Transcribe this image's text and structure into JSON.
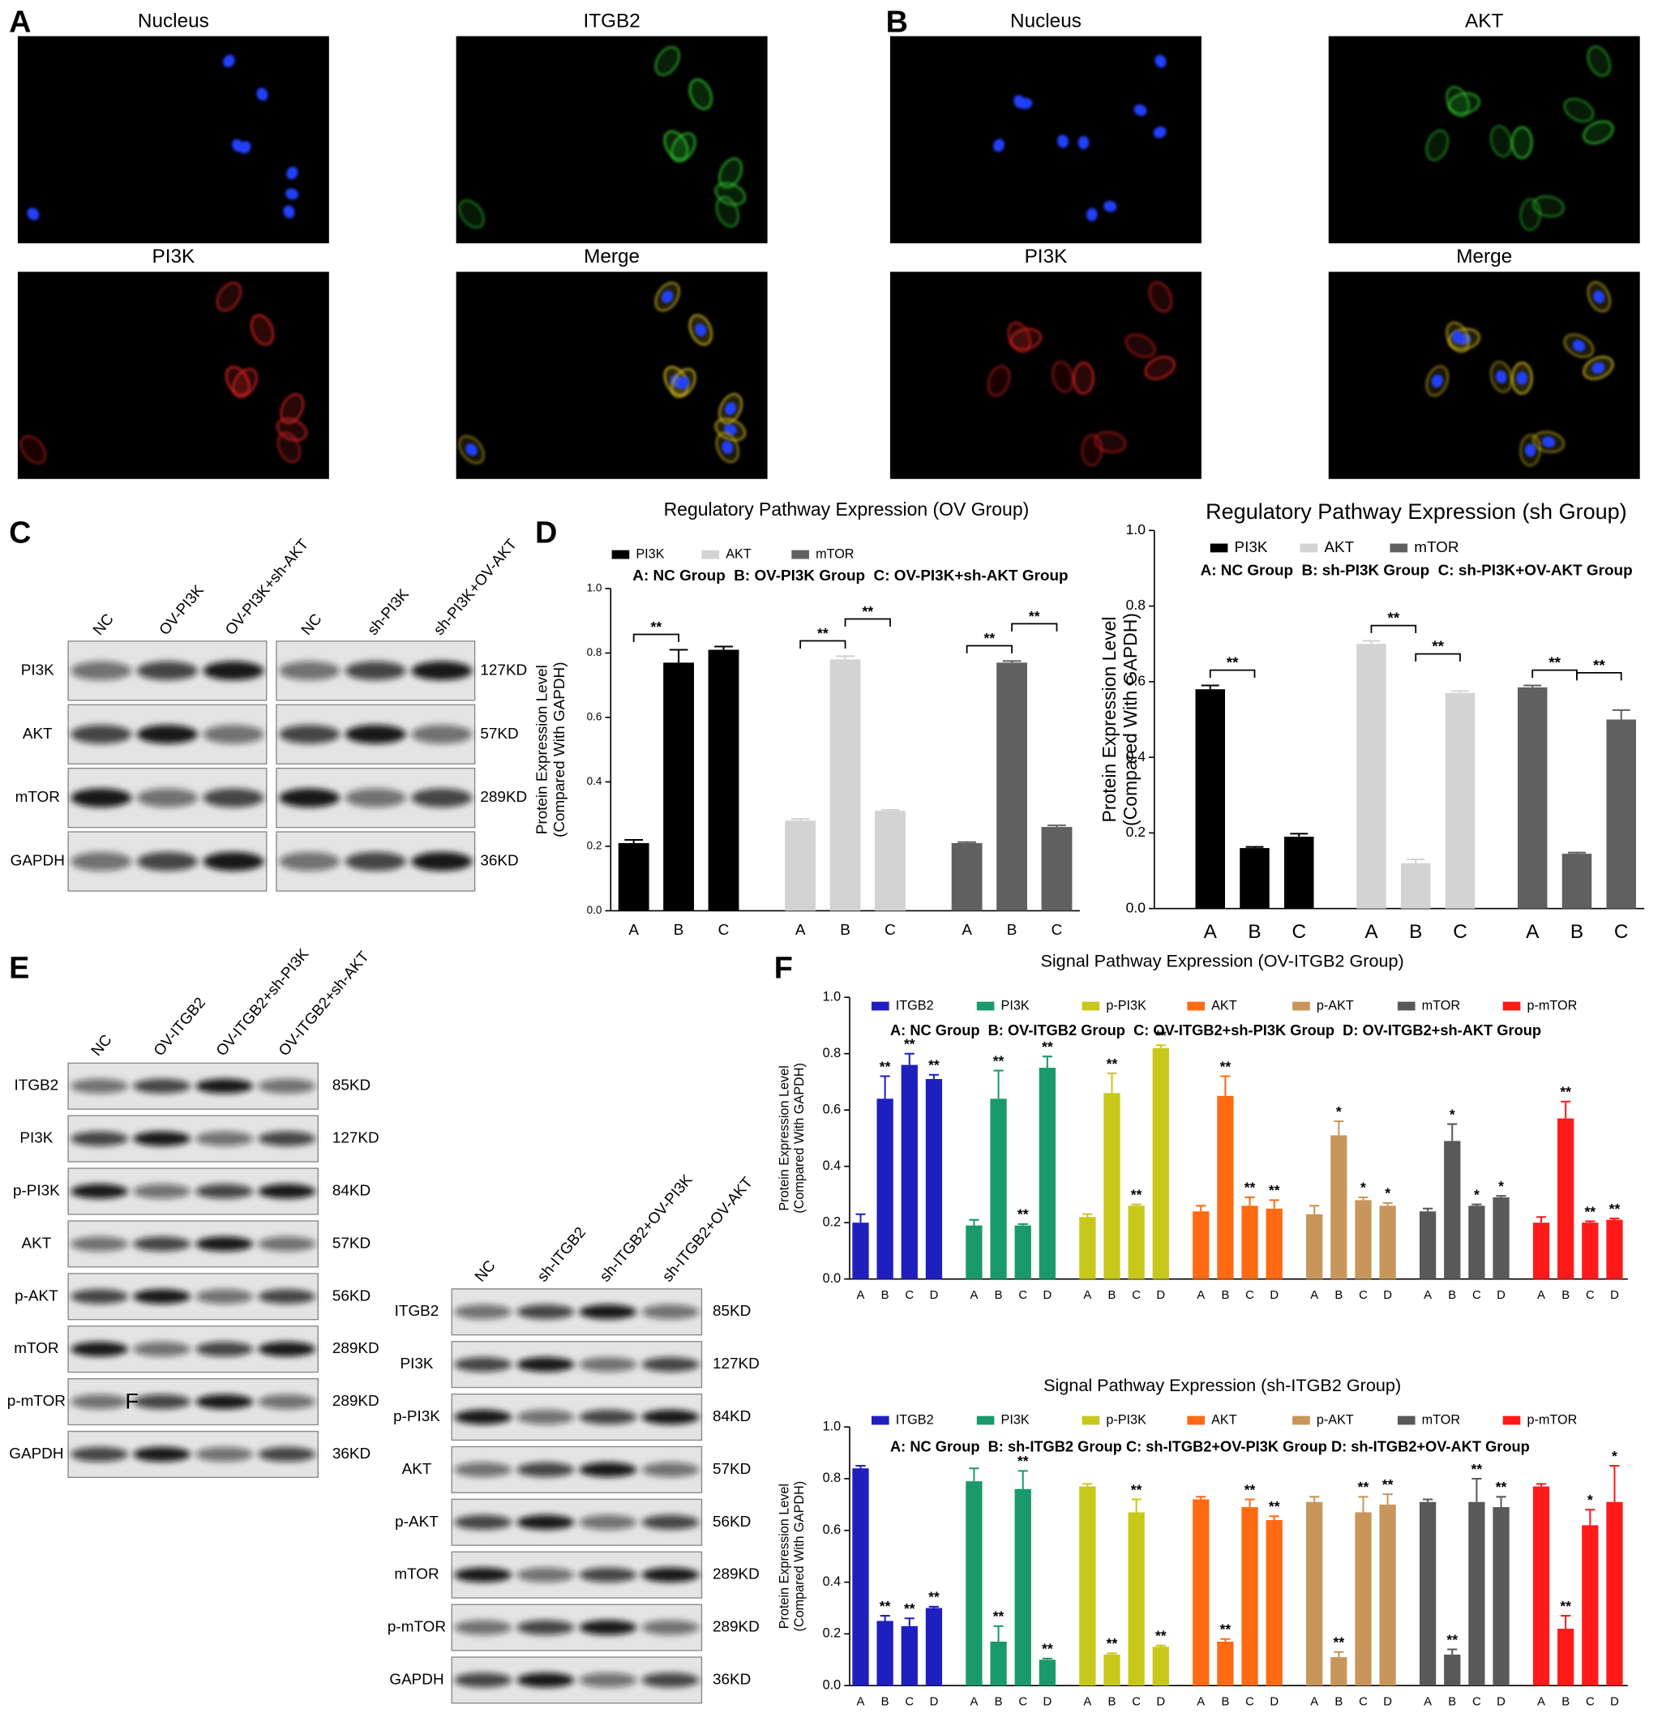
{
  "panel_letters": [
    "A",
    "B",
    "C",
    "D",
    "E",
    "F"
  ],
  "microscopy": [
    {
      "titles": [
        "Nucleus",
        "ITGB2",
        "PI3K",
        "Merge"
      ]
    },
    {
      "titles": [
        "Nucleus",
        "AKT",
        "PI3K",
        "Merge"
      ]
    }
  ],
  "blot_c": {
    "lanes": [
      "NC",
      "OV-PI3K",
      "OV-PI3K+sh-AKT",
      "NC",
      "sh-PI3K",
      "sh-PI3K+OV-AKT"
    ],
    "rows": [
      "PI3K",
      "AKT",
      "mTOR",
      "GAPDH"
    ],
    "sizes": [
      "127KD",
      "57KD",
      "289KD",
      "36KD"
    ]
  },
  "blot_e_left": {
    "lanes": [
      "NC",
      "OV-ITGB2",
      "OV-ITGB2+sh-PI3K",
      "OV-ITGB2+sh-AKT"
    ],
    "rows": [
      "ITGB2",
      "PI3K",
      "p-PI3K",
      "AKT",
      "p-AKT",
      "mTOR",
      "p-mTOR",
      "GAPDH"
    ],
    "sizes": [
      "85KD",
      "127KD",
      "84KD",
      "57KD",
      "56KD",
      "289KD",
      "289KD",
      "36KD"
    ],
    "overlay_text": "F"
  },
  "blot_e_right": {
    "lanes": [
      "NC",
      "sh-ITGB2",
      "sh-ITGB2+OV-PI3K",
      "sh-ITGB2+OV-AKT"
    ],
    "rows": [
      "ITGB2",
      "PI3K",
      "p-PI3K",
      "AKT",
      "p-AKT",
      "mTOR",
      "p-mTOR",
      "GAPDH"
    ],
    "sizes": [
      "85KD",
      "127KD",
      "84KD",
      "57KD",
      "56KD",
      "289KD",
      "289KD",
      "36KD"
    ]
  },
  "chart_data": [
    {
      "type": "bar",
      "title": "Regulatory Pathway Expression (OV Group)",
      "annotation": "A: NC Group  B: OV-PI3K Group  C: OV-PI3K+sh-AKT Group",
      "ylabel": [
        "Protein Expression Level",
        "(Compared With GAPDH)"
      ],
      "categories": [
        "A",
        "B",
        "C"
      ],
      "ylim": [
        0,
        1
      ],
      "yticks": [
        {
          "value": 0,
          "label": "0.0"
        },
        0.2,
        0.4,
        0.6,
        0.8,
        {
          "value": 1,
          "label": "1.0"
        }
      ],
      "series": [
        {
          "name": "PI3K",
          "color": "#000000",
          "values": [
            0.21,
            0.77,
            0.81
          ],
          "errors": [
            0.01,
            0.04,
            0.01
          ],
          "brackets": [
            {
              "from": "A",
              "to": "B",
              "label": "**"
            }
          ]
        },
        {
          "name": "AKT",
          "color": "#d3d3d3",
          "values": [
            0.28,
            0.78,
            0.31
          ],
          "errors": [
            0.005,
            0.01,
            0.003
          ],
          "brackets": [
            {
              "from": "A",
              "to": "B",
              "label": "**"
            },
            {
              "from": "B",
              "to": "C",
              "label": "**"
            }
          ]
        },
        {
          "name": "mTOR",
          "color": "#606060",
          "values": [
            0.21,
            0.77,
            0.26
          ],
          "errors": [
            0.003,
            0.005,
            0.005
          ],
          "brackets": [
            {
              "from": "A",
              "to": "B",
              "label": "**"
            },
            {
              "from": "B",
              "to": "C",
              "label": "**"
            }
          ]
        }
      ]
    },
    {
      "type": "bar",
      "title": "Regulatory Pathway Expression (sh Group)",
      "annotation": "A: NC Group  B: sh-PI3K Group  C: sh-PI3K+OV-AKT Group",
      "ylabel": [
        "Protein Expression Level",
        "(Compared With GAPDH)"
      ],
      "categories": [
        "A",
        "B",
        "C"
      ],
      "ylim": [
        0,
        1
      ],
      "yticks": [
        {
          "value": 0,
          "label": "0.0"
        },
        0.2,
        0.4,
        0.6,
        0.8,
        {
          "value": 1,
          "label": "1.0"
        }
      ],
      "series": [
        {
          "name": "PI3K",
          "color": "#000000",
          "values": [
            0.58,
            0.16,
            0.19
          ],
          "errors": [
            0.01,
            0.003,
            0.008
          ],
          "brackets": [
            {
              "from": "A",
              "to": "B",
              "label": "**"
            }
          ]
        },
        {
          "name": "AKT",
          "color": "#d3d3d3",
          "values": [
            0.7,
            0.12,
            0.57
          ],
          "errors": [
            0.008,
            0.01,
            0.005
          ],
          "brackets": [
            {
              "from": "A",
              "to": "B",
              "label": "**"
            },
            {
              "from": "B",
              "to": "C",
              "label": "**"
            }
          ]
        },
        {
          "name": "mTOR",
          "color": "#606060",
          "values": [
            0.585,
            0.145,
            0.5
          ],
          "errors": [
            0.005,
            0.003,
            0.025
          ],
          "brackets": [
            {
              "from": "A",
              "to": "B",
              "label": "**"
            },
            {
              "from": "B",
              "to": "C",
              "label": "**"
            }
          ]
        }
      ]
    },
    {
      "type": "bar",
      "title": "Signal Pathway Expression (OV-ITGB2 Group)",
      "annotation": "A: NC Group  B: OV-ITGB2 Group  C: OV-ITGB2+sh-PI3K Group  D: OV-ITGB2+sh-AKT Group",
      "ylabel": [
        "Protein Expression Level",
        "(Compared With GAPDH)"
      ],
      "categories": [
        "A",
        "B",
        "C",
        "D"
      ],
      "ylim": [
        0,
        1
      ],
      "yticks": [
        {
          "value": 0,
          "label": "0.0"
        },
        0.2,
        0.4,
        0.6,
        0.8,
        {
          "value": 1,
          "label": "1.0"
        }
      ],
      "series": [
        {
          "name": "ITGB2",
          "color": "#1f1fbf",
          "values": [
            0.2,
            0.64,
            0.76,
            0.71
          ],
          "errors": [
            0.03,
            0.08,
            0.04,
            0.015
          ],
          "sig": [
            null,
            "**",
            "**",
            "**"
          ]
        },
        {
          "name": "PI3K",
          "color": "#1a9a6a",
          "values": [
            0.19,
            0.64,
            0.19,
            0.75
          ],
          "errors": [
            0.02,
            0.1,
            0.005,
            0.04
          ],
          "sig": [
            null,
            "**",
            "**",
            "**"
          ]
        },
        {
          "name": "p-PI3K",
          "color": "#c8c81a",
          "values": [
            0.22,
            0.66,
            0.26,
            0.82
          ],
          "errors": [
            0.01,
            0.07,
            0.005,
            0.01
          ],
          "sig": [
            null,
            "**",
            "**",
            "**"
          ]
        },
        {
          "name": "AKT",
          "color": "#ff6a13",
          "values": [
            0.24,
            0.65,
            0.26,
            0.25
          ],
          "errors": [
            0.02,
            0.07,
            0.03,
            0.03
          ],
          "sig": [
            null,
            "**",
            "**",
            "**"
          ]
        },
        {
          "name": "p-AKT",
          "color": "#c8965a",
          "values": [
            0.23,
            0.51,
            0.28,
            0.26
          ],
          "errors": [
            0.03,
            0.05,
            0.01,
            0.01
          ],
          "sig": [
            null,
            "*",
            "*",
            "*"
          ]
        },
        {
          "name": "mTOR",
          "color": "#595959",
          "values": [
            0.24,
            0.49,
            0.26,
            0.29
          ],
          "errors": [
            0.01,
            0.06,
            0.005,
            0.005
          ],
          "sig": [
            null,
            "*",
            "*",
            "*"
          ]
        },
        {
          "name": "p-mTOR",
          "color": "#ff1a1a",
          "values": [
            0.2,
            0.57,
            0.2,
            0.21
          ],
          "errors": [
            0.02,
            0.06,
            0.005,
            0.005
          ],
          "sig": [
            null,
            "**",
            "**",
            "**"
          ]
        }
      ]
    },
    {
      "type": "bar",
      "title": "Signal Pathway Expression (sh-ITGB2 Group)",
      "annotation": "A: NC Group  B: sh-ITGB2 Group C: sh-ITGB2+OV-PI3K Group D: sh-ITGB2+OV-AKT Group",
      "ylabel": [
        "Protein Expression Level",
        "(Compared With GAPDH)"
      ],
      "categories": [
        "A",
        "B",
        "C",
        "D"
      ],
      "ylim": [
        0,
        1
      ],
      "yticks": [
        {
          "value": 0,
          "label": "0.0"
        },
        0.2,
        0.4,
        0.6,
        0.8,
        {
          "value": 1,
          "label": "1.0"
        }
      ],
      "series": [
        {
          "name": "ITGB2",
          "color": "#1f1fbf",
          "values": [
            0.84,
            0.25,
            0.23,
            0.3
          ],
          "errors": [
            0.01,
            0.02,
            0.03,
            0.005
          ],
          "sig": [
            null,
            "**",
            "**",
            "**"
          ]
        },
        {
          "name": "PI3K",
          "color": "#1a9a6a",
          "values": [
            0.79,
            0.17,
            0.76,
            0.1
          ],
          "errors": [
            0.05,
            0.06,
            0.07,
            0.005
          ],
          "sig": [
            null,
            "**",
            "**",
            "**"
          ]
        },
        {
          "name": "p-PI3K",
          "color": "#c8c81a",
          "values": [
            0.77,
            0.12,
            0.67,
            0.15
          ],
          "errors": [
            0.01,
            0.005,
            0.05,
            0.005
          ],
          "sig": [
            null,
            "**",
            "**",
            "**"
          ]
        },
        {
          "name": "AKT",
          "color": "#ff6a13",
          "values": [
            0.72,
            0.17,
            0.69,
            0.64
          ],
          "errors": [
            0.01,
            0.01,
            0.03,
            0.015
          ],
          "sig": [
            null,
            "**",
            "**",
            "**"
          ]
        },
        {
          "name": "p-AKT",
          "color": "#c8965a",
          "values": [
            0.71,
            0.11,
            0.67,
            0.7
          ],
          "errors": [
            0.02,
            0.02,
            0.06,
            0.04
          ],
          "sig": [
            null,
            "**",
            "**",
            "**"
          ]
        },
        {
          "name": "mTOR",
          "color": "#595959",
          "values": [
            0.71,
            0.12,
            0.71,
            0.69
          ],
          "errors": [
            0.01,
            0.02,
            0.09,
            0.04
          ],
          "sig": [
            null,
            "**",
            "**",
            "**"
          ]
        },
        {
          "name": "p-mTOR",
          "color": "#ff1a1a",
          "values": [
            0.77,
            0.22,
            0.62,
            0.71
          ],
          "errors": [
            0.01,
            0.05,
            0.06,
            0.14
          ],
          "sig": [
            null,
            "**",
            "*",
            "*"
          ]
        }
      ]
    }
  ]
}
